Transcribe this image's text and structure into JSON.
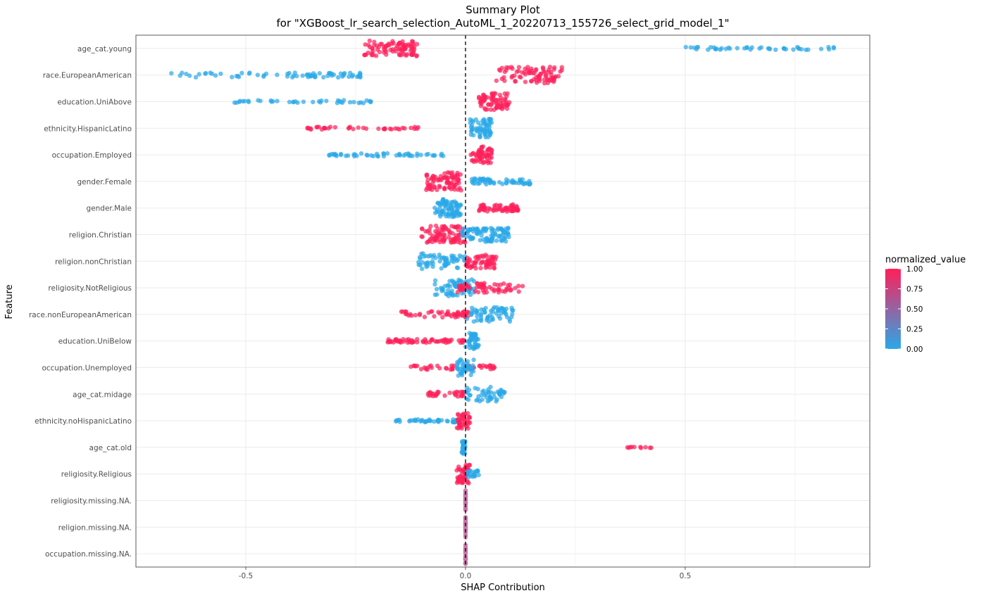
{
  "chart_data": {
    "type": "scatter",
    "title": "Summary Plot",
    "subtitle": "for \"XGBoost_lr_search_selection_AutoML_1_20220713_155726_select_grid_model_1\"",
    "xlabel": "SHAP Contribution",
    "ylabel": "Feature",
    "xlim": [
      -0.75,
      0.92
    ],
    "x_ticks": [
      -0.5,
      0,
      0.5
    ],
    "x_tick_labels": [
      "-0.5",
      "0.0",
      "0.5"
    ],
    "reference_line": {
      "x": 0,
      "style": "dashed"
    },
    "grid": true,
    "legend": {
      "title": "normalized_value",
      "placement": "right",
      "ticks": [
        1.0,
        0.75,
        0.5,
        0.25,
        0.0
      ],
      "tick_labels": [
        "1.00",
        "0.75",
        "0.50",
        "0.25",
        "0.00"
      ],
      "color_low": "#29a8e8",
      "color_high": "#ff1f5a"
    },
    "colors": {
      "low": "#29a8e8",
      "high": "#ff1f5a",
      "mid": "#c578a8"
    },
    "features": [
      {
        "name": "age_cat.young",
        "groups": [
          {
            "value": 1,
            "min": -0.23,
            "max": -0.11,
            "n": 90,
            "spread": 0.65
          },
          {
            "value": 0,
            "min": 0.5,
            "max": 0.84,
            "n": 45,
            "spread": 0.12
          }
        ]
      },
      {
        "name": "race.EuropeanAmerican",
        "groups": [
          {
            "value": 0,
            "min": -0.67,
            "max": -0.22,
            "n": 70,
            "spread": 0.2
          },
          {
            "value": 1,
            "min": 0.07,
            "max": 0.22,
            "n": 85,
            "spread": 0.7
          }
        ]
      },
      {
        "name": "education.UniAbove",
        "groups": [
          {
            "value": 0,
            "min": -0.53,
            "max": -0.21,
            "n": 40,
            "spread": 0.12
          },
          {
            "value": 1,
            "min": 0.03,
            "max": 0.1,
            "n": 70,
            "spread": 0.7
          }
        ]
      },
      {
        "name": "ethnicity.HispanicLatino",
        "groups": [
          {
            "value": 1,
            "min": -0.36,
            "max": -0.1,
            "n": 40,
            "spread": 0.12
          },
          {
            "value": 0,
            "min": 0.01,
            "max": 0.06,
            "n": 60,
            "spread": 0.8
          }
        ]
      },
      {
        "name": "occupation.Employed",
        "groups": [
          {
            "value": 0,
            "min": -0.31,
            "max": -0.04,
            "n": 50,
            "spread": 0.12
          },
          {
            "value": 1,
            "min": 0.01,
            "max": 0.06,
            "n": 55,
            "spread": 0.7
          }
        ]
      },
      {
        "name": "gender.Female",
        "groups": [
          {
            "value": 1,
            "min": -0.09,
            "max": -0.01,
            "n": 80,
            "spread": 0.75
          },
          {
            "value": 0,
            "min": 0.01,
            "max": 0.15,
            "n": 60,
            "spread": 0.25
          }
        ]
      },
      {
        "name": "gender.Male",
        "groups": [
          {
            "value": 0,
            "min": -0.07,
            "max": -0.01,
            "n": 75,
            "spread": 0.75
          },
          {
            "value": 1,
            "min": 0.03,
            "max": 0.12,
            "n": 60,
            "spread": 0.3
          }
        ]
      },
      {
        "name": "religion.Christian",
        "groups": [
          {
            "value": 1,
            "min": -0.1,
            "max": 0.0,
            "n": 90,
            "spread": 0.75
          },
          {
            "value": 0,
            "min": -0.01,
            "max": 0.1,
            "n": 90,
            "spread": 0.6
          }
        ]
      },
      {
        "name": "religion.nonChristian",
        "groups": [
          {
            "value": 0,
            "min": -0.11,
            "max": 0.0,
            "n": 60,
            "spread": 0.65
          },
          {
            "value": 1,
            "min": 0.0,
            "max": 0.07,
            "n": 60,
            "spread": 0.6
          }
        ]
      },
      {
        "name": "religiosity.NotReligious",
        "groups": [
          {
            "value": 0,
            "min": -0.07,
            "max": 0.02,
            "n": 70,
            "spread": 0.7
          },
          {
            "value": 1,
            "min": -0.02,
            "max": 0.13,
            "n": 60,
            "spread": 0.4
          }
        ]
      },
      {
        "name": "race.nonEuropeanAmerican",
        "groups": [
          {
            "value": 1,
            "min": -0.15,
            "max": 0.01,
            "n": 50,
            "spread": 0.25
          },
          {
            "value": 0,
            "min": 0.0,
            "max": 0.11,
            "n": 60,
            "spread": 0.6
          }
        ]
      },
      {
        "name": "education.UniBelow",
        "groups": [
          {
            "value": 1,
            "min": -0.18,
            "max": 0.0,
            "n": 60,
            "spread": 0.15
          },
          {
            "value": 0,
            "min": 0.0,
            "max": 0.03,
            "n": 45,
            "spread": 0.7
          }
        ]
      },
      {
        "name": "occupation.Unemployed",
        "groups": [
          {
            "value": 1,
            "min": -0.13,
            "max": 0.08,
            "n": 45,
            "spread": 0.18
          },
          {
            "value": 0,
            "min": -0.02,
            "max": 0.02,
            "n": 40,
            "spread": 0.7
          }
        ]
      },
      {
        "name": "age_cat.midage",
        "groups": [
          {
            "value": 1,
            "min": -0.09,
            "max": 0.0,
            "n": 30,
            "spread": 0.2
          },
          {
            "value": 0,
            "min": 0.0,
            "max": 0.09,
            "n": 50,
            "spread": 0.6
          }
        ]
      },
      {
        "name": "ethnicity.noHispanicLatino",
        "groups": [
          {
            "value": 0,
            "min": -0.16,
            "max": -0.01,
            "n": 45,
            "spread": 0.12
          },
          {
            "value": 1,
            "min": -0.02,
            "max": 0.01,
            "n": 40,
            "spread": 0.65
          }
        ]
      },
      {
        "name": "age_cat.old",
        "groups": [
          {
            "value": 0,
            "min": -0.01,
            "max": 0.0,
            "n": 30,
            "spread": 0.55
          },
          {
            "value": 1,
            "min": 0.36,
            "max": 0.47,
            "n": 10,
            "spread": 0.05
          }
        ]
      },
      {
        "name": "religiosity.Religious",
        "groups": [
          {
            "value": 1,
            "min": -0.02,
            "max": 0.01,
            "n": 50,
            "spread": 0.8
          },
          {
            "value": 0,
            "min": 0.0,
            "max": 0.03,
            "n": 20,
            "spread": 0.3
          }
        ]
      },
      {
        "name": "religiosity.missing.NA.",
        "groups": [
          {
            "value": 0.5,
            "min": 0.0,
            "max": 0.0,
            "n": 30,
            "spread": 0.85
          }
        ]
      },
      {
        "name": "religion.missing.NA.",
        "groups": [
          {
            "value": 0.5,
            "min": 0.0,
            "max": 0.0,
            "n": 30,
            "spread": 0.85
          }
        ]
      },
      {
        "name": "occupation.missing.NA.",
        "groups": [
          {
            "value": 0.5,
            "min": 0.0,
            "max": 0.0,
            "n": 30,
            "spread": 0.85
          }
        ]
      }
    ]
  }
}
